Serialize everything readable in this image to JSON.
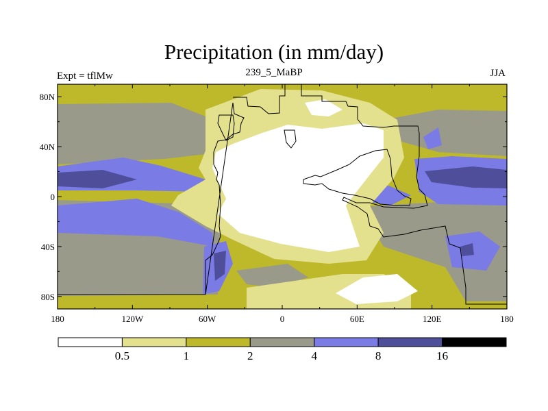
{
  "chart_data": {
    "type": "heatmap",
    "title": "Precipitation (in mm/day)",
    "left_label": "Expt = tflMw",
    "center_label": "239_5_MaBP",
    "right_label": "JJA",
    "x": {
      "min": -180,
      "max": 180,
      "tick_values": [
        -180,
        -120,
        -60,
        0,
        60,
        120,
        180
      ],
      "tick_labels": [
        "180",
        "120W",
        "60W",
        "0",
        "60E",
        "120E",
        "180"
      ]
    },
    "y": {
      "min": -90,
      "max": 90,
      "tick_values": [
        80,
        40,
        0,
        -40,
        -80
      ],
      "tick_labels": [
        "80N",
        "40N",
        "0",
        "40S",
        "80S"
      ]
    },
    "colorbar": {
      "levels": [
        "0.5",
        "1",
        "2",
        "4",
        "8",
        "16"
      ],
      "level_values": [
        0.5,
        1,
        2,
        4,
        8,
        16
      ],
      "colors": [
        "#ffffff",
        "#e3e08e",
        "#bdb92a",
        "#9a9a8a",
        "#7b7be6",
        "#4e4e9a",
        "#000000"
      ]
    },
    "background_class_color": "#bdb92a"
  }
}
